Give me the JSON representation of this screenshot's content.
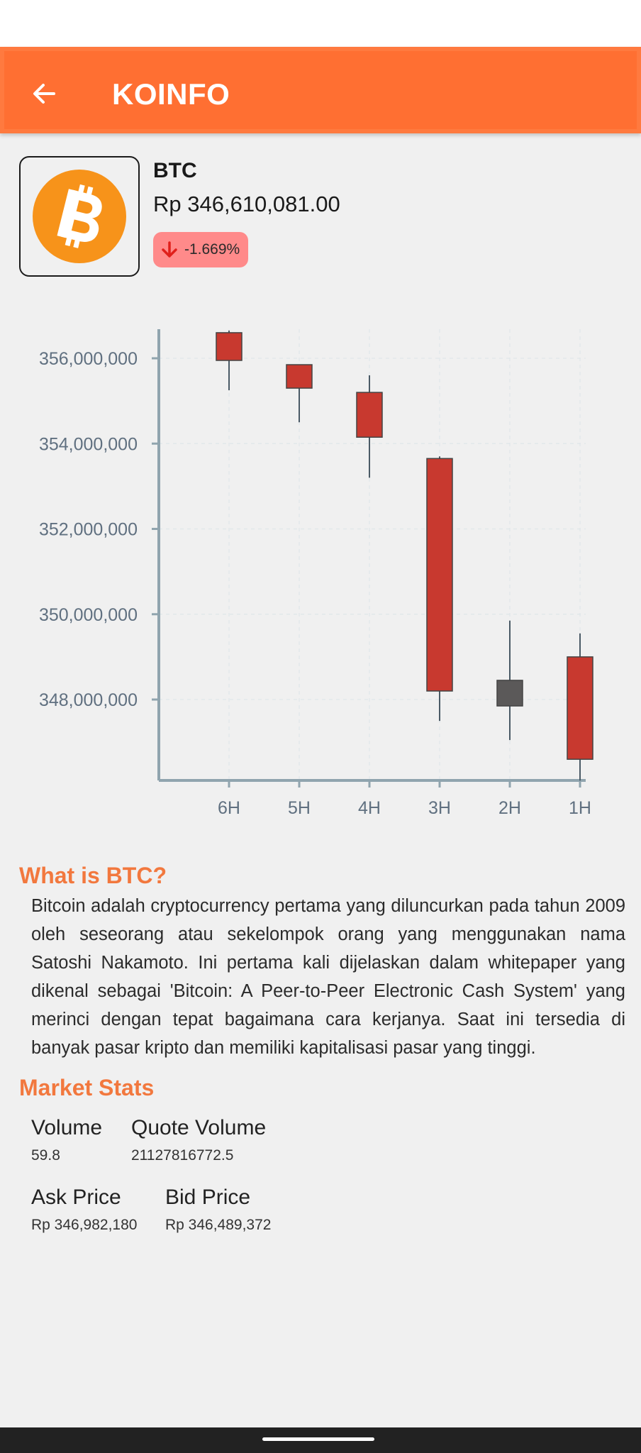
{
  "app_bar": {
    "title": "KOINFO"
  },
  "coin": {
    "symbol": "BTC",
    "price": "Rp 346,610,081.00",
    "change": "-1.669%",
    "icon": "bitcoin-icon",
    "colors": {
      "coin": "#f7931a",
      "badge": "#ff8a8a",
      "arrow": "#e0201b"
    }
  },
  "chart_data": {
    "type": "candlestick",
    "categories": [
      "6H",
      "5H",
      "4H",
      "3H",
      "2H",
      "1H"
    ],
    "y_ticks": [
      "356,000,000",
      "354,000,000",
      "352,000,000",
      "350,000,000",
      "348,000,000"
    ],
    "y_tick_values": [
      356000000,
      354000000,
      352000000,
      350000000,
      348000000
    ],
    "ylim": [
      346100000,
      356700000
    ],
    "candles": [
      {
        "x": "6H",
        "open": 356600000,
        "high": 356650000,
        "low": 355250000,
        "close": 355950000
      },
      {
        "x": "5H",
        "open": 355850000,
        "high": 355850000,
        "low": 354500000,
        "close": 355300000
      },
      {
        "x": "4H",
        "open": 355200000,
        "high": 355600000,
        "low": 353200000,
        "close": 354150000
      },
      {
        "x": "3H",
        "open": 353650000,
        "high": 353700000,
        "low": 347500000,
        "close": 348200000
      },
      {
        "x": "2H",
        "open": 348450000,
        "high": 349850000,
        "low": 347050000,
        "close": 347850000
      },
      {
        "x": "1H",
        "open": 349000000,
        "high": 349550000,
        "low": 346100000,
        "close": 346600000
      }
    ],
    "colors": {
      "down": "#c8392f",
      "neutral": "#5b5959",
      "axis": "#90a4ae",
      "grid": "#e2e7ea",
      "label": "#607080"
    },
    "grid": true
  },
  "about": {
    "title": "What is BTC?",
    "text": "Bitcoin adalah cryptocurrency pertama yang diluncurkan pada tahun 2009 oleh seseorang atau sekelompok orang yang menggunakan nama Satoshi Nakamoto. Ini pertama kali dijelaskan dalam whitepaper yang dikenal sebagai 'Bitcoin: A Peer-to-Peer Electronic Cash System' yang merinci dengan tepat bagaimana cara kerjanya. Saat ini tersedia di banyak pasar kripto dan memiliki kapitalisasi pasar yang tinggi."
  },
  "market_stats": {
    "title": "Market Stats",
    "volume": {
      "label": "Volume",
      "value": "59.8"
    },
    "quote_volume": {
      "label": "Quote Volume",
      "value": "21127816772.5"
    },
    "ask_price": {
      "label": "Ask Price",
      "value": "Rp 346,982,180"
    },
    "bid_price": {
      "label": "Bid Price",
      "value": "Rp 346,489,372"
    }
  },
  "theme": {
    "accent": "#ff6f32",
    "section_title": "#f2783e"
  }
}
